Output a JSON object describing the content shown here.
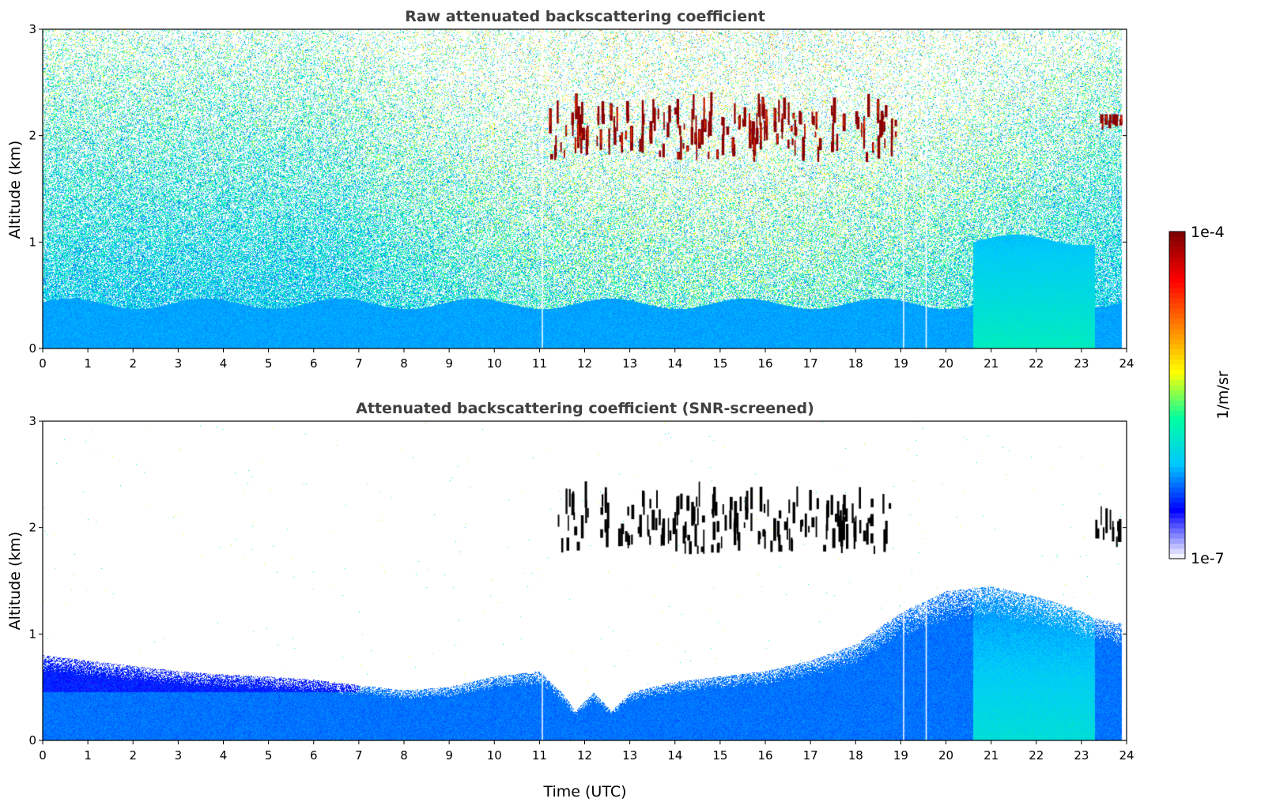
{
  "colors": {
    "colormap": [
      "#f2f2ff",
      "#0000ff",
      "#00c8ff",
      "#00ffa0",
      "#ffff00",
      "#ff8000",
      "#ff0000",
      "#800000"
    ],
    "strong_signal": "#8b0000",
    "screened_strong": "#000000",
    "background": "#ffffff",
    "title_text": "#404040"
  },
  "chart_data": [
    {
      "type": "heatmap",
      "title": "Raw attenuated backscattering coefficient",
      "xlabel": "",
      "ylabel": "Altitude (km)",
      "xlim": [
        0,
        24
      ],
      "ylim": [
        0,
        3
      ],
      "xticks": [
        "0",
        "1",
        "2",
        "3",
        "4",
        "5",
        "6",
        "7",
        "8",
        "9",
        "10",
        "11",
        "12",
        "13",
        "14",
        "15",
        "16",
        "17",
        "18",
        "19",
        "20",
        "21",
        "22",
        "23",
        "24"
      ],
      "yticks": [
        "0",
        "1",
        "2",
        "3"
      ],
      "data_end_hour": 23.9,
      "missing_data_hours": [
        11.05,
        19.05,
        19.55
      ],
      "features": [
        {
          "name": "boundary layer",
          "x_range": [
            0,
            23.9
          ],
          "altitude_km": [
            0,
            0.45
          ]
        },
        {
          "name": "aerosol enhancement",
          "x_range": [
            20.6,
            23.3
          ],
          "altitude_km": [
            0,
            1.1
          ]
        },
        {
          "name": "cloud layer",
          "x_range": [
            11.2,
            18.9
          ],
          "altitude_km": [
            1.75,
            2.5
          ]
        },
        {
          "name": "cloud",
          "x_range": [
            23.3,
            23.9
          ],
          "altitude_km": [
            2.05,
            2.2
          ]
        }
      ]
    },
    {
      "type": "heatmap",
      "title": "Attenuated backscattering coefficient (SNR-screened)",
      "xlabel": "Time (UTC)",
      "ylabel": "Altitude (km)",
      "xlim": [
        0,
        24
      ],
      "ylim": [
        0,
        3
      ],
      "xticks": [
        "0",
        "1",
        "2",
        "3",
        "4",
        "5",
        "6",
        "7",
        "8",
        "9",
        "10",
        "11",
        "12",
        "13",
        "14",
        "15",
        "16",
        "17",
        "18",
        "19",
        "20",
        "21",
        "22",
        "23",
        "24"
      ],
      "yticks": [
        "0",
        "1",
        "2",
        "3"
      ],
      "data_end_hour": 23.9,
      "missing_data_hours": [
        11.05,
        19.05,
        19.55
      ],
      "boundary_layer_top_km": [
        [
          0,
          0.8
        ],
        [
          1,
          0.75
        ],
        [
          2,
          0.7
        ],
        [
          3,
          0.65
        ],
        [
          4,
          0.62
        ],
        [
          5,
          0.6
        ],
        [
          6,
          0.57
        ],
        [
          7,
          0.52
        ],
        [
          8,
          0.47
        ],
        [
          9,
          0.5
        ],
        [
          10,
          0.6
        ],
        [
          11,
          0.65
        ],
        [
          11.5,
          0.45
        ],
        [
          11.8,
          0.28
        ],
        [
          12.2,
          0.45
        ],
        [
          12.6,
          0.28
        ],
        [
          13,
          0.45
        ],
        [
          14,
          0.55
        ],
        [
          15,
          0.6
        ],
        [
          16,
          0.65
        ],
        [
          17,
          0.75
        ],
        [
          18,
          0.9
        ],
        [
          19,
          1.2
        ],
        [
          20,
          1.4
        ],
        [
          21,
          1.45
        ],
        [
          22,
          1.35
        ],
        [
          22.8,
          1.25
        ],
        [
          23.3,
          1.15
        ],
        [
          23.9,
          1.1
        ]
      ],
      "features": [
        {
          "name": "cloud layer",
          "x_range": [
            11.2,
            18.9
          ],
          "altitude_km": [
            1.75,
            2.5
          ]
        },
        {
          "name": "cloud",
          "x_range": [
            23.3,
            23.9
          ],
          "altitude_km": [
            1.8,
            2.2
          ]
        }
      ]
    }
  ],
  "colorbar": {
    "max_label": "1e-4",
    "min_label": "1e-7",
    "unit_label": "1/m/sr"
  }
}
